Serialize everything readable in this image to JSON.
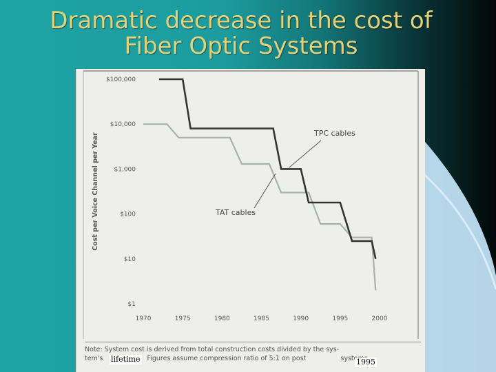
{
  "slide": {
    "title_line1": "Dramatic decrease in the cost of",
    "title_line2": "Fiber Optic Systems"
  },
  "colors": {
    "title": "#e3d27c",
    "tpc_line": "#333333",
    "tat_line": "#a9b0ae",
    "figure_bg": "#eeeeea"
  },
  "chart_data": {
    "type": "line",
    "title": "",
    "xlabel": "",
    "ylabel": "Cost per Voice Channel per Year",
    "y_scale": "log",
    "ylim": [
      1,
      100000
    ],
    "xlim": [
      1970,
      2000
    ],
    "x_ticks": [
      "1970",
      "1975",
      "1980",
      "1985",
      "1990",
      "1995",
      "2000"
    ],
    "y_ticks": [
      "$100,000",
      "$10,000",
      "$1,000",
      "$100",
      "$10",
      "$1"
    ],
    "series": [
      {
        "name": "TPC cables",
        "points": [
          [
            1972,
            100000
          ],
          [
            1975,
            100000
          ],
          [
            1976,
            8000
          ],
          [
            1986.5,
            8000
          ],
          [
            1987.5,
            1000
          ],
          [
            1990,
            1000
          ],
          [
            1991,
            180
          ],
          [
            1995,
            180
          ],
          [
            1996.5,
            25
          ],
          [
            1999,
            25
          ],
          [
            1999.5,
            10
          ]
        ]
      },
      {
        "name": "TAT cables",
        "points": [
          [
            1970,
            10000
          ],
          [
            1973,
            10000
          ],
          [
            1974.5,
            5000
          ],
          [
            1981,
            5000
          ],
          [
            1982.5,
            1300
          ],
          [
            1986,
            1300
          ],
          [
            1987.5,
            300
          ],
          [
            1991,
            300
          ],
          [
            1992.5,
            60
          ],
          [
            1995,
            60
          ],
          [
            1996.5,
            30
          ],
          [
            1999,
            30
          ],
          [
            1999.5,
            2
          ]
        ]
      }
    ],
    "annotations": [
      "TPC cables",
      "TAT cables"
    ]
  },
  "figure": {
    "note_line1": "Note:  System cost is derived from total construction costs divided by the sys-",
    "note_line2_a": "tem's",
    "note_line2_b": "Figures assume compression ratio of 5:1 on post",
    "note_line2_c": "systems",
    "overlay_lifetime": "lifetime",
    "overlay_year": "1995"
  }
}
